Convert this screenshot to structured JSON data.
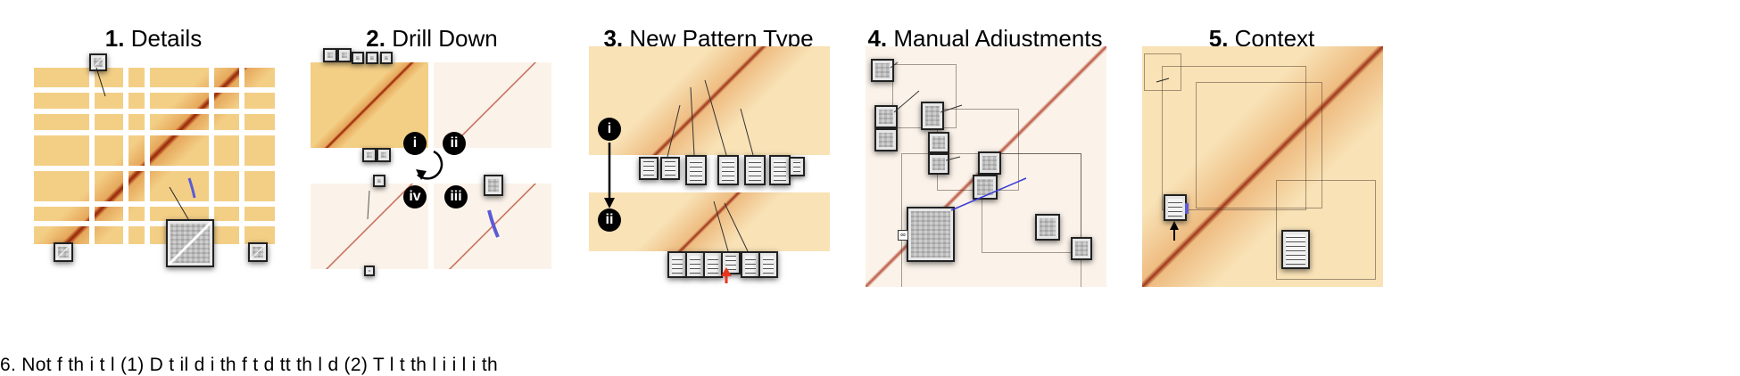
{
  "panels": [
    {
      "number": "1.",
      "title": "Details"
    },
    {
      "number": "2.",
      "title": "Drill Down"
    },
    {
      "number": "3.",
      "title": "New Pattern Type"
    },
    {
      "number": "4.",
      "title": "Manual Adjustments"
    },
    {
      "number": "5.",
      "title": "Context"
    }
  ],
  "panel2_badges": [
    "i",
    "ii",
    "iii",
    "iv"
  ],
  "panel3_badges": [
    "i",
    "ii"
  ],
  "caption": "6. Not     f    th          i          t  l    (1) D t il d i           th     f                  t   d    tt     th      l   d       (2) T        l t  th         l i i  l   i    th"
}
